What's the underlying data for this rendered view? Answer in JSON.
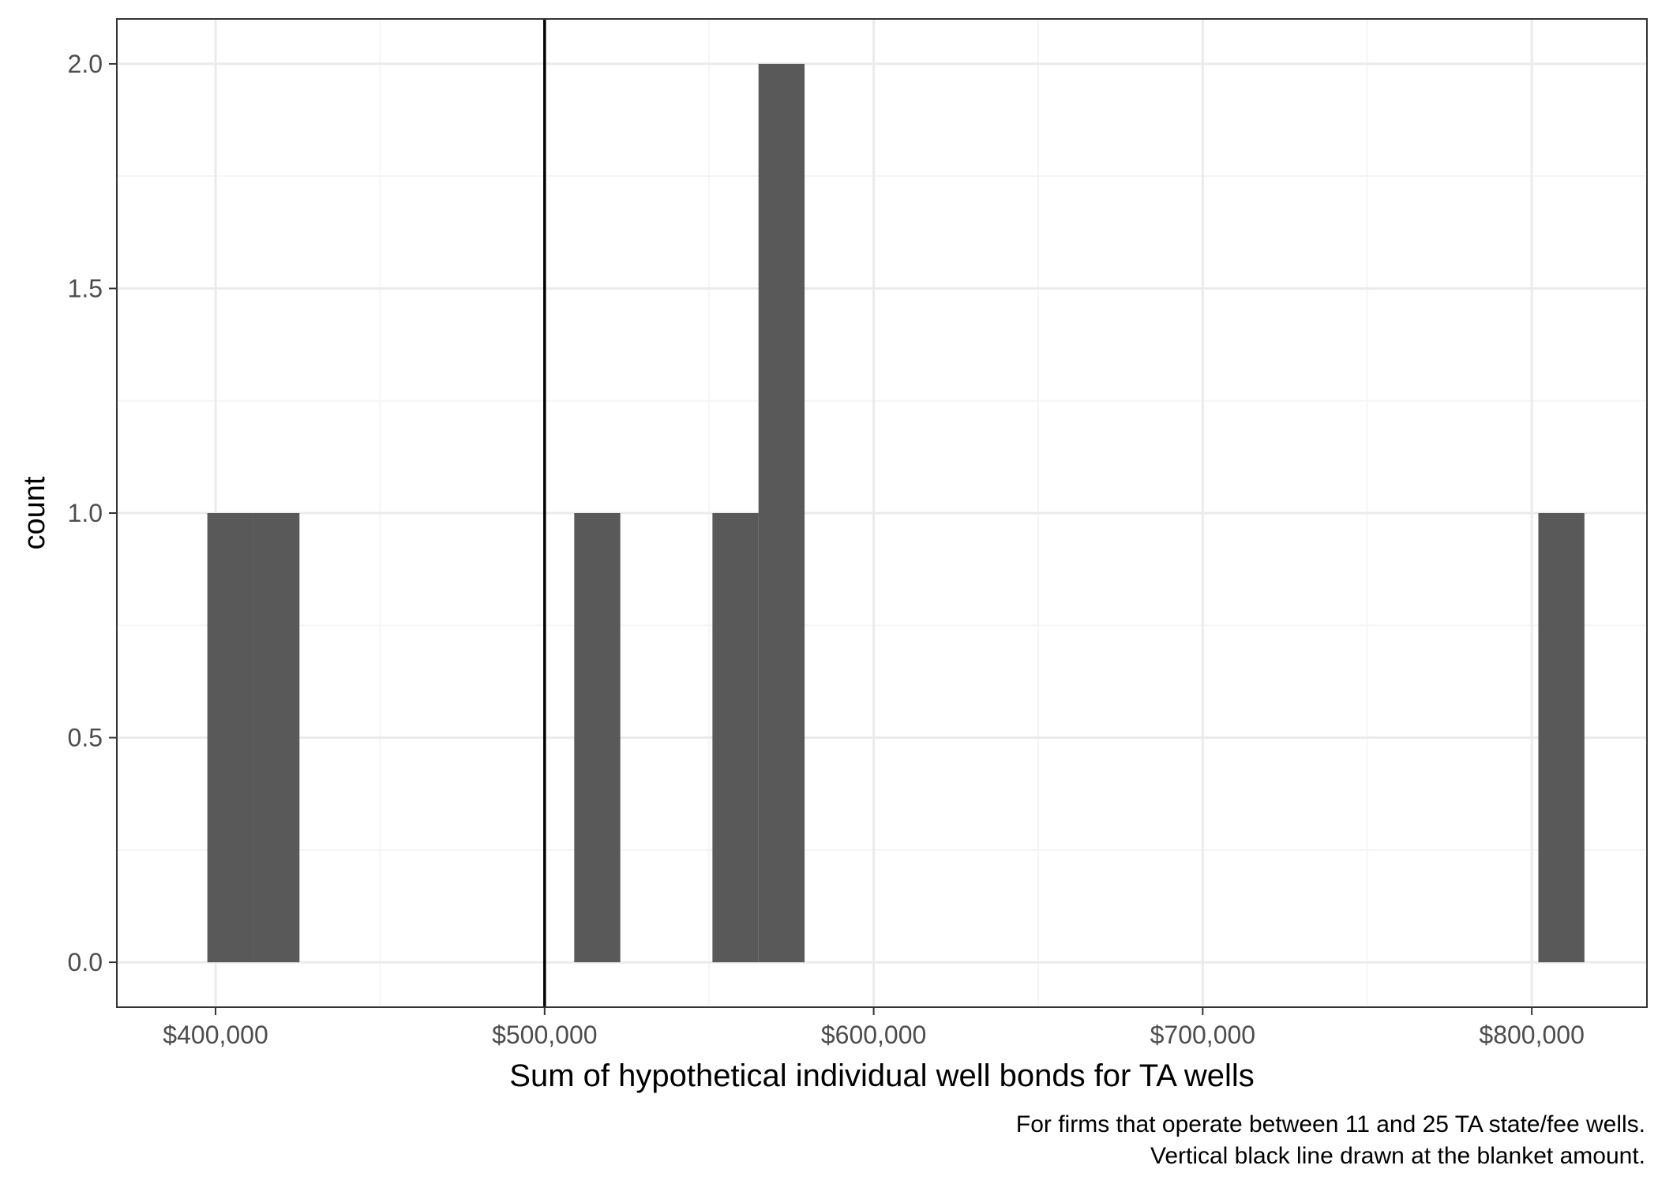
{
  "chart_data": {
    "type": "bar",
    "title": "",
    "xlabel": "Sum of hypothetical individual well bonds for TA wells",
    "ylabel": "count",
    "caption": [
      "For firms that operate between 11 and 25 TA state/fee wells.",
      "Vertical black line drawn at the blanket amount."
    ],
    "xlim": [
      370000,
      835000
    ],
    "ylim": [
      -0.1,
      2.1
    ],
    "x_ticks": [
      400000,
      500000,
      600000,
      700000,
      800000
    ],
    "x_tick_labels": [
      "$400,000",
      "$500,000",
      "$600,000",
      "$700,000",
      "$800,000"
    ],
    "y_ticks": [
      0,
      0.5,
      1,
      1.5,
      2
    ],
    "y_tick_labels": [
      "0.0",
      "0.5",
      "1.0",
      "1.5",
      "2.0"
    ],
    "grid": true,
    "bins": [
      {
        "x0": 397500,
        "x1": 411500,
        "count": 1
      },
      {
        "x0": 411500,
        "x1": 425500,
        "count": 1
      },
      {
        "x0": 509000,
        "x1": 523000,
        "count": 1
      },
      {
        "x0": 551000,
        "x1": 565000,
        "count": 1
      },
      {
        "x0": 565000,
        "x1": 579000,
        "count": 2
      },
      {
        "x0": 802000,
        "x1": 816000,
        "count": 1
      }
    ],
    "vline": 500000,
    "colors": {
      "bar": "#595959",
      "vline": "#000000",
      "grid_major": "#ebebeb",
      "grid_minor": "#f5f5f5",
      "panel_border": "#333333"
    }
  }
}
